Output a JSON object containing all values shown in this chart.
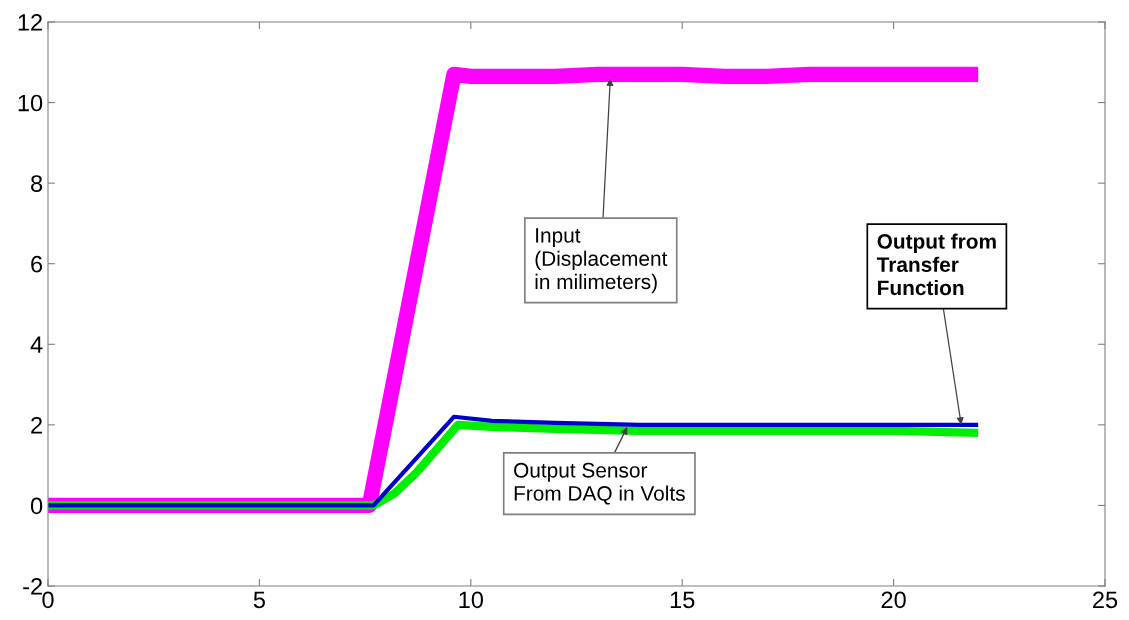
{
  "chart_data": {
    "type": "line",
    "xlim": [
      0,
      25
    ],
    "ylim": [
      -2,
      12
    ],
    "xticks": [
      0,
      5,
      10,
      15,
      20,
      25
    ],
    "yticks": [
      -2,
      0,
      2,
      4,
      6,
      8,
      10,
      12
    ],
    "grid": false,
    "legend": false,
    "marker": "none",
    "line_style": "solid",
    "series": [
      {
        "color": "#ff00ff",
        "x": [
          0,
          1,
          2,
          3,
          4,
          5,
          6,
          7,
          7.6,
          9.6,
          10,
          11,
          12,
          13,
          14,
          15,
          16,
          17,
          18,
          19,
          20,
          21,
          22
        ],
        "values": [
          0,
          0,
          0,
          0,
          0,
          0,
          0,
          0,
          0,
          10.7,
          10.65,
          10.65,
          10.65,
          10.7,
          10.7,
          10.7,
          10.65,
          10.65,
          10.7,
          10.7,
          10.7,
          10.7,
          10.7
        ]
      },
      {
        "color": "#00ee00",
        "x": [
          0,
          2,
          4,
          6,
          7.7,
          8.2,
          8.7,
          9.2,
          9.7,
          10.5,
          12,
          14,
          16,
          18,
          20,
          22
        ],
        "values": [
          0,
          0,
          0,
          0,
          0,
          0.3,
          0.8,
          1.4,
          2.0,
          1.95,
          1.9,
          1.85,
          1.85,
          1.85,
          1.85,
          1.8
        ]
      },
      {
        "color": "#0000cc",
        "x": [
          0,
          2,
          4,
          6,
          7.7,
          9.6,
          10.5,
          12,
          14,
          16,
          18,
          20,
          22
        ],
        "values": [
          0,
          0,
          0,
          0,
          0,
          2.2,
          2.1,
          2.05,
          2.0,
          2.0,
          2.0,
          2.0,
          2.0
        ]
      }
    ],
    "annotations": [
      {
        "text": "Input\n(Displacement\nin milimeters)",
        "x": 13.3,
        "y": 10.6
      },
      {
        "text": "Output from\nTransfer\nFunction",
        "x": 21.6,
        "y": 2.0
      },
      {
        "text": "Output Sensor\nFrom DAQ in Volts",
        "x": 13.7,
        "y": 1.95
      }
    ]
  }
}
